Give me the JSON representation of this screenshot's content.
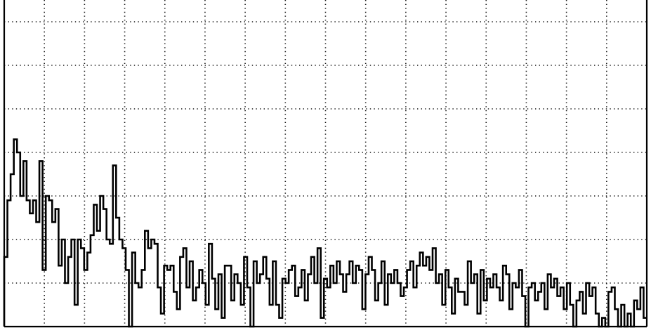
{
  "chart_data": {
    "type": "line",
    "step": true,
    "title": "",
    "xlabel": "",
    "ylabel": "",
    "xlim": [
      0,
      16
    ],
    "ylim": [
      0,
      7.5
    ],
    "x_gridlines": 15,
    "y_gridlines": 7,
    "grid": true,
    "grid_style": "dotted",
    "legend": "none",
    "tick_labels": "none",
    "line_color": "#000000",
    "series": [
      {
        "values": [
          1.6,
          2.9,
          3.5,
          4.3,
          4.0,
          3.0,
          3.8,
          2.9,
          2.6,
          2.9,
          2.4,
          3.8,
          1.3,
          3.0,
          2.9,
          2.4,
          2.7,
          1.4,
          2.0,
          1.0,
          1.6,
          2.0,
          0.5,
          2.0,
          1.8,
          1.3,
          1.7,
          2.1,
          2.8,
          2.2,
          3.0,
          2.7,
          2.0,
          1.9,
          3.7,
          2.5,
          2.0,
          1.8,
          1.3,
          0.0,
          1.7,
          1.0,
          0.9,
          1.3,
          2.2,
          1.8,
          2.0,
          1.9,
          0.9,
          0.3,
          1.4,
          1.3,
          1.4,
          0.8,
          0.4,
          1.6,
          1.8,
          0.9,
          1.5,
          0.6,
          0.9,
          1.3,
          1.0,
          0.5,
          1.9,
          1.1,
          0.4,
          1.2,
          0.2,
          1.4,
          1.4,
          0.6,
          1.2,
          1.0,
          0.5,
          1.6,
          0.9,
          0.0,
          1.5,
          1.0,
          1.2,
          1.6,
          1.1,
          0.5,
          1.5,
          0.5,
          0.2,
          1.1,
          1.0,
          1.3,
          1.4,
          0.7,
          0.9,
          1.3,
          0.6,
          1.2,
          1.6,
          1.0,
          1.8,
          0.2,
          1.1,
          0.9,
          1.4,
          1.0,
          1.5,
          1.2,
          0.8,
          1.2,
          1.5,
          1.0,
          1.4,
          1.3,
          0.4,
          1.2,
          1.6,
          1.3,
          0.6,
          1.0,
          1.5,
          0.5,
          1.2,
          1.0,
          1.3,
          1.0,
          0.7,
          0.9,
          1.3,
          1.5,
          0.9,
          1.4,
          1.7,
          1.4,
          1.6,
          1.3,
          1.8,
          1.0,
          1.2,
          0.5,
          1.3,
          0.9,
          0.3,
          1.1,
          0.8,
          0.8,
          0.5,
          1.5,
          1.0,
          1.2,
          0.3,
          1.3,
          0.6,
          1.1,
          0.9,
          1.2,
          0.9,
          0.6,
          1.4,
          1.2,
          0.4,
          1.0,
          0.9,
          1.3,
          0.7,
          0.0,
          0.9,
          1.0,
          0.6,
          0.8,
          1.0,
          0.4,
          1.2,
          0.9,
          1.1,
          0.7,
          0.9,
          0.4,
          1.0,
          0.5,
          0.0,
          0.6,
          0.8,
          0.3,
          1.0,
          0.7,
          0.9,
          0.3,
          0.0,
          0.2,
          0.0,
          0.8,
          0.9,
          0.4,
          0.0,
          0.5,
          0.0,
          0.3,
          0.0,
          0.6,
          0.4,
          0.9,
          0.2
        ]
      }
    ]
  }
}
